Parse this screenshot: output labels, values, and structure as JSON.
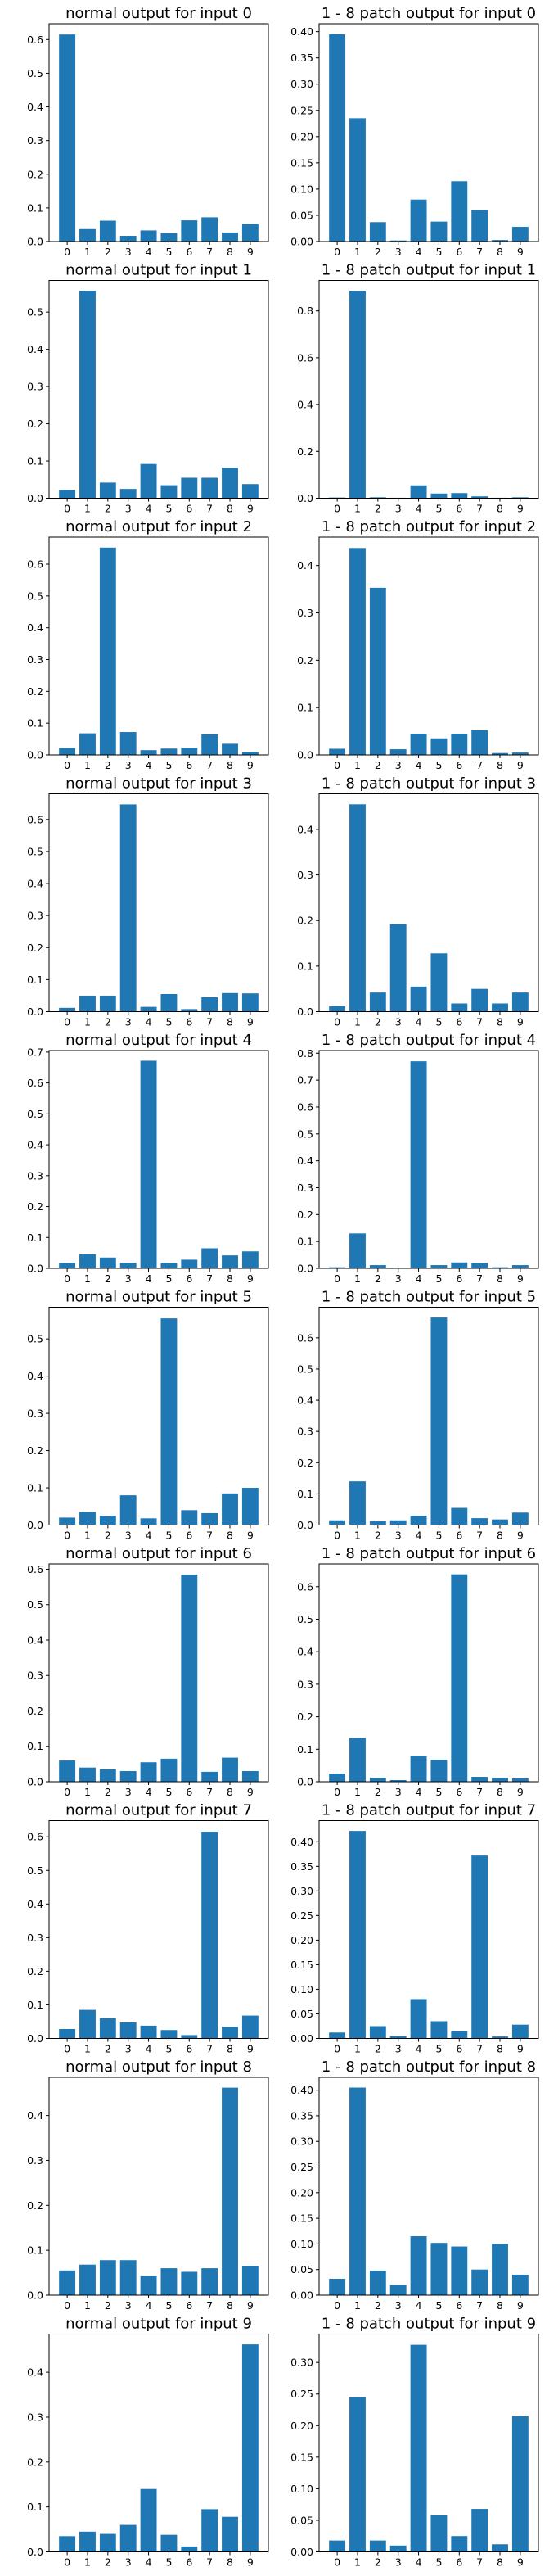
{
  "figure": {
    "bar_color": "#1f77b4"
  },
  "chart_data": [
    {
      "type": "bar",
      "title": "normal output for input 0",
      "categories": [
        "0",
        "1",
        "2",
        "3",
        "4",
        "5",
        "6",
        "7",
        "8",
        "9"
      ],
      "values": [
        0.615,
        0.037,
        0.062,
        0.017,
        0.033,
        0.025,
        0.063,
        0.072,
        0.027,
        0.052
      ],
      "ylim": [
        0,
        0.647
      ],
      "yticks": [
        0.0,
        0.1,
        0.2,
        0.3,
        0.4,
        0.5,
        0.6
      ],
      "ytick_labels": [
        "0.0",
        "0.1",
        "0.2",
        "0.3",
        "0.4",
        "0.5",
        "0.6"
      ],
      "xlabel": "",
      "ylabel": ""
    },
    {
      "type": "bar",
      "title": "1 - 8 patch output for input 0",
      "categories": [
        "0",
        "1",
        "2",
        "3",
        "4",
        "5",
        "6",
        "7",
        "8",
        "9"
      ],
      "values": [
        0.395,
        0.235,
        0.037,
        0.002,
        0.08,
        0.038,
        0.115,
        0.06,
        0.003,
        0.028
      ],
      "ylim": [
        0,
        0.415
      ],
      "yticks": [
        0.0,
        0.05,
        0.1,
        0.15,
        0.2,
        0.25,
        0.3,
        0.35,
        0.4
      ],
      "ytick_labels": [
        "0.00",
        "0.05",
        "0.10",
        "0.15",
        "0.20",
        "0.25",
        "0.30",
        "0.35",
        "0.40"
      ],
      "xlabel": "",
      "ylabel": ""
    },
    {
      "type": "bar",
      "title": "normal output for input 1",
      "categories": [
        "0",
        "1",
        "2",
        "3",
        "4",
        "5",
        "6",
        "7",
        "8",
        "9"
      ],
      "values": [
        0.022,
        0.557,
        0.042,
        0.025,
        0.092,
        0.035,
        0.055,
        0.055,
        0.082,
        0.038
      ],
      "ylim": [
        0,
        0.585
      ],
      "yticks": [
        0.0,
        0.1,
        0.2,
        0.3,
        0.4,
        0.5
      ],
      "ytick_labels": [
        "0.0",
        "0.1",
        "0.2",
        "0.3",
        "0.4",
        "0.5"
      ],
      "xlabel": "",
      "ylabel": ""
    },
    {
      "type": "bar",
      "title": "1 - 8 patch output for input 1",
      "categories": [
        "0",
        "1",
        "2",
        "3",
        "4",
        "5",
        "6",
        "7",
        "8",
        "9"
      ],
      "values": [
        0.003,
        0.885,
        0.004,
        0.002,
        0.055,
        0.02,
        0.022,
        0.008,
        0.002,
        0.004
      ],
      "ylim": [
        0,
        0.93
      ],
      "yticks": [
        0.0,
        0.2,
        0.4,
        0.6,
        0.8
      ],
      "ytick_labels": [
        "0.0",
        "0.2",
        "0.4",
        "0.6",
        "0.8"
      ],
      "xlabel": "",
      "ylabel": ""
    },
    {
      "type": "bar",
      "title": "normal output for input 2",
      "categories": [
        "0",
        "1",
        "2",
        "3",
        "4",
        "5",
        "6",
        "7",
        "8",
        "9"
      ],
      "values": [
        0.022,
        0.068,
        0.652,
        0.072,
        0.015,
        0.02,
        0.022,
        0.065,
        0.035,
        0.01
      ],
      "ylim": [
        0,
        0.685
      ],
      "yticks": [
        0.0,
        0.1,
        0.2,
        0.3,
        0.4,
        0.5,
        0.6
      ],
      "ytick_labels": [
        "0.0",
        "0.1",
        "0.2",
        "0.3",
        "0.4",
        "0.5",
        "0.6"
      ],
      "xlabel": "",
      "ylabel": ""
    },
    {
      "type": "bar",
      "title": "1 - 8 patch output for input 2",
      "categories": [
        "0",
        "1",
        "2",
        "3",
        "4",
        "5",
        "6",
        "7",
        "8",
        "9"
      ],
      "values": [
        0.013,
        0.437,
        0.353,
        0.012,
        0.045,
        0.035,
        0.045,
        0.052,
        0.004,
        0.005
      ],
      "ylim": [
        0,
        0.46
      ],
      "yticks": [
        0.0,
        0.1,
        0.2,
        0.3,
        0.4
      ],
      "ytick_labels": [
        "0.0",
        "0.1",
        "0.2",
        "0.3",
        "0.4"
      ],
      "xlabel": "",
      "ylabel": ""
    },
    {
      "type": "bar",
      "title": "normal output for input 3",
      "categories": [
        "0",
        "1",
        "2",
        "3",
        "4",
        "5",
        "6",
        "7",
        "8",
        "9"
      ],
      "values": [
        0.012,
        0.05,
        0.05,
        0.647,
        0.015,
        0.055,
        0.008,
        0.045,
        0.058,
        0.057
      ],
      "ylim": [
        0,
        0.68
      ],
      "yticks": [
        0.0,
        0.1,
        0.2,
        0.3,
        0.4,
        0.5,
        0.6
      ],
      "ytick_labels": [
        "0.0",
        "0.1",
        "0.2",
        "0.3",
        "0.4",
        "0.5",
        "0.6"
      ],
      "xlabel": "",
      "ylabel": ""
    },
    {
      "type": "bar",
      "title": "1 - 8 patch output for input 3",
      "categories": [
        "0",
        "1",
        "2",
        "3",
        "4",
        "5",
        "6",
        "7",
        "8",
        "9"
      ],
      "values": [
        0.012,
        0.455,
        0.042,
        0.192,
        0.055,
        0.128,
        0.018,
        0.05,
        0.018,
        0.042
      ],
      "ylim": [
        0,
        0.478
      ],
      "yticks": [
        0.0,
        0.1,
        0.2,
        0.3,
        0.4
      ],
      "ytick_labels": [
        "0.0",
        "0.1",
        "0.2",
        "0.3",
        "0.4"
      ],
      "xlabel": "",
      "ylabel": ""
    },
    {
      "type": "bar",
      "title": "normal output for input 4",
      "categories": [
        "0",
        "1",
        "2",
        "3",
        "4",
        "5",
        "6",
        "7",
        "8",
        "9"
      ],
      "values": [
        0.018,
        0.045,
        0.035,
        0.018,
        0.672,
        0.018,
        0.028,
        0.065,
        0.042,
        0.055
      ],
      "ylim": [
        0,
        0.705
      ],
      "yticks": [
        0.0,
        0.1,
        0.2,
        0.3,
        0.4,
        0.5,
        0.6,
        0.7
      ],
      "ytick_labels": [
        "0.0",
        "0.1",
        "0.2",
        "0.3",
        "0.4",
        "0.5",
        "0.6",
        "0.7"
      ],
      "xlabel": "",
      "ylabel": ""
    },
    {
      "type": "bar",
      "title": "1 - 8 patch output for input 4",
      "categories": [
        "0",
        "1",
        "2",
        "3",
        "4",
        "5",
        "6",
        "7",
        "8",
        "9"
      ],
      "values": [
        0.004,
        0.13,
        0.012,
        0.002,
        0.77,
        0.012,
        0.022,
        0.02,
        0.004,
        0.012
      ],
      "ylim": [
        0,
        0.81
      ],
      "yticks": [
        0.0,
        0.1,
        0.2,
        0.3,
        0.4,
        0.5,
        0.6,
        0.7,
        0.8
      ],
      "ytick_labels": [
        "0.0",
        "0.1",
        "0.2",
        "0.3",
        "0.4",
        "0.5",
        "0.6",
        "0.7",
        "0.8"
      ],
      "xlabel": "",
      "ylabel": ""
    },
    {
      "type": "bar",
      "title": "normal output for input 5",
      "categories": [
        "0",
        "1",
        "2",
        "3",
        "4",
        "5",
        "6",
        "7",
        "8",
        "9"
      ],
      "values": [
        0.02,
        0.035,
        0.025,
        0.08,
        0.018,
        0.555,
        0.04,
        0.032,
        0.085,
        0.1
      ],
      "ylim": [
        0,
        0.585
      ],
      "yticks": [
        0.0,
        0.1,
        0.2,
        0.3,
        0.4,
        0.5
      ],
      "ytick_labels": [
        "0.0",
        "0.1",
        "0.2",
        "0.3",
        "0.4",
        "0.5"
      ],
      "xlabel": "",
      "ylabel": ""
    },
    {
      "type": "bar",
      "title": "1 - 8 patch output for input 5",
      "categories": [
        "0",
        "1",
        "2",
        "3",
        "4",
        "5",
        "6",
        "7",
        "8",
        "9"
      ],
      "values": [
        0.015,
        0.14,
        0.012,
        0.015,
        0.03,
        0.665,
        0.055,
        0.022,
        0.018,
        0.04
      ],
      "ylim": [
        0,
        0.698
      ],
      "yticks": [
        0.0,
        0.1,
        0.2,
        0.3,
        0.4,
        0.5,
        0.6
      ],
      "ytick_labels": [
        "0.0",
        "0.1",
        "0.2",
        "0.3",
        "0.4",
        "0.5",
        "0.6"
      ],
      "xlabel": "",
      "ylabel": ""
    },
    {
      "type": "bar",
      "title": "normal output for input 6",
      "categories": [
        "0",
        "1",
        "2",
        "3",
        "4",
        "5",
        "6",
        "7",
        "8",
        "9"
      ],
      "values": [
        0.06,
        0.04,
        0.035,
        0.03,
        0.055,
        0.065,
        0.585,
        0.028,
        0.068,
        0.03
      ],
      "ylim": [
        0,
        0.615
      ],
      "yticks": [
        0.0,
        0.1,
        0.2,
        0.3,
        0.4,
        0.5,
        0.6
      ],
      "ytick_labels": [
        "0.0",
        "0.1",
        "0.2",
        "0.3",
        "0.4",
        "0.5",
        "0.6"
      ],
      "xlabel": "",
      "ylabel": ""
    },
    {
      "type": "bar",
      "title": "1 - 8 patch output for input 6",
      "categories": [
        "0",
        "1",
        "2",
        "3",
        "4",
        "5",
        "6",
        "7",
        "8",
        "9"
      ],
      "values": [
        0.025,
        0.135,
        0.012,
        0.005,
        0.08,
        0.068,
        0.638,
        0.015,
        0.012,
        0.01
      ],
      "ylim": [
        0,
        0.67
      ],
      "yticks": [
        0.0,
        0.1,
        0.2,
        0.3,
        0.4,
        0.5,
        0.6
      ],
      "ytick_labels": [
        "0.0",
        "0.1",
        "0.2",
        "0.3",
        "0.4",
        "0.5",
        "0.6"
      ],
      "xlabel": "",
      "ylabel": ""
    },
    {
      "type": "bar",
      "title": "normal output for input 7",
      "categories": [
        "0",
        "1",
        "2",
        "3",
        "4",
        "5",
        "6",
        "7",
        "8",
        "9"
      ],
      "values": [
        0.028,
        0.085,
        0.06,
        0.048,
        0.038,
        0.025,
        0.01,
        0.615,
        0.035,
        0.068
      ],
      "ylim": [
        0,
        0.648
      ],
      "yticks": [
        0.0,
        0.1,
        0.2,
        0.3,
        0.4,
        0.5,
        0.6
      ],
      "ytick_labels": [
        "0.0",
        "0.1",
        "0.2",
        "0.3",
        "0.4",
        "0.5",
        "0.6"
      ],
      "xlabel": "",
      "ylabel": ""
    },
    {
      "type": "bar",
      "title": "1 - 8 patch output for input 7",
      "categories": [
        "0",
        "1",
        "2",
        "3",
        "4",
        "5",
        "6",
        "7",
        "8",
        "9"
      ],
      "values": [
        0.012,
        0.422,
        0.025,
        0.005,
        0.08,
        0.035,
        0.015,
        0.372,
        0.004,
        0.028
      ],
      "ylim": [
        0,
        0.443
      ],
      "yticks": [
        0.0,
        0.05,
        0.1,
        0.15,
        0.2,
        0.25,
        0.3,
        0.35,
        0.4
      ],
      "ytick_labels": [
        "0.00",
        "0.05",
        "0.10",
        "0.15",
        "0.20",
        "0.25",
        "0.30",
        "0.35",
        "0.40"
      ],
      "xlabel": "",
      "ylabel": ""
    },
    {
      "type": "bar",
      "title": "normal output for input 8",
      "categories": [
        "0",
        "1",
        "2",
        "3",
        "4",
        "5",
        "6",
        "7",
        "8",
        "9"
      ],
      "values": [
        0.055,
        0.068,
        0.078,
        0.078,
        0.042,
        0.06,
        0.052,
        0.06,
        0.462,
        0.065
      ],
      "ylim": [
        0,
        0.485
      ],
      "yticks": [
        0.0,
        0.1,
        0.2,
        0.3,
        0.4
      ],
      "ytick_labels": [
        "0.0",
        "0.1",
        "0.2",
        "0.3",
        "0.4"
      ],
      "xlabel": "",
      "ylabel": ""
    },
    {
      "type": "bar",
      "title": "1 - 8 patch output for input 8",
      "categories": [
        "0",
        "1",
        "2",
        "3",
        "4",
        "5",
        "6",
        "7",
        "8",
        "9"
      ],
      "values": [
        0.032,
        0.405,
        0.048,
        0.02,
        0.115,
        0.102,
        0.095,
        0.05,
        0.1,
        0.04
      ],
      "ylim": [
        0,
        0.425
      ],
      "yticks": [
        0.0,
        0.05,
        0.1,
        0.15,
        0.2,
        0.25,
        0.3,
        0.35,
        0.4
      ],
      "ytick_labels": [
        "0.00",
        "0.05",
        "0.10",
        "0.15",
        "0.20",
        "0.25",
        "0.30",
        "0.35",
        "0.40"
      ],
      "xlabel": "",
      "ylabel": ""
    },
    {
      "type": "bar",
      "title": "normal output for input 9",
      "categories": [
        "0",
        "1",
        "2",
        "3",
        "4",
        "5",
        "6",
        "7",
        "8",
        "9"
      ],
      "values": [
        0.035,
        0.045,
        0.04,
        0.06,
        0.14,
        0.038,
        0.012,
        0.095,
        0.078,
        0.462
      ],
      "ylim": [
        0,
        0.485
      ],
      "yticks": [
        0.0,
        0.1,
        0.2,
        0.3,
        0.4
      ],
      "ytick_labels": [
        "0.0",
        "0.1",
        "0.2",
        "0.3",
        "0.4"
      ],
      "xlabel": "",
      "ylabel": ""
    },
    {
      "type": "bar",
      "title": "1 - 8 patch output for input 9",
      "categories": [
        "0",
        "1",
        "2",
        "3",
        "4",
        "5",
        "6",
        "7",
        "8",
        "9"
      ],
      "values": [
        0.018,
        0.245,
        0.018,
        0.01,
        0.328,
        0.058,
        0.025,
        0.068,
        0.012,
        0.215
      ],
      "ylim": [
        0,
        0.345
      ],
      "yticks": [
        0.0,
        0.05,
        0.1,
        0.15,
        0.2,
        0.25,
        0.3
      ],
      "ytick_labels": [
        "0.00",
        "0.05",
        "0.10",
        "0.15",
        "0.20",
        "0.25",
        "0.30"
      ],
      "xlabel": "",
      "ylabel": ""
    }
  ]
}
